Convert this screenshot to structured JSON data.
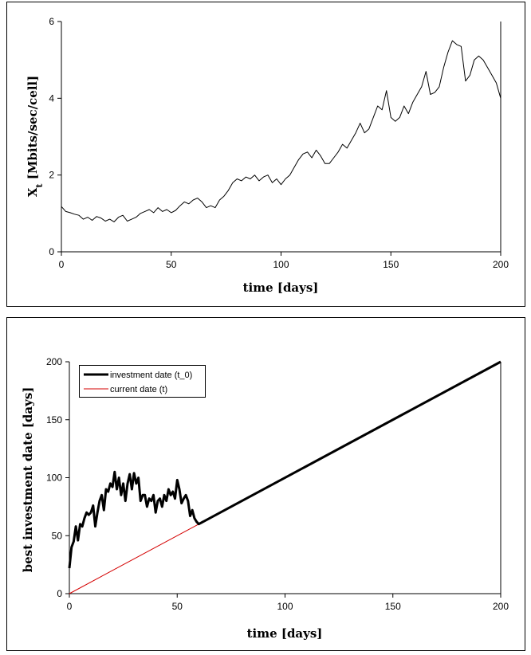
{
  "chart_data": [
    {
      "type": "line",
      "xlabel": "time [days]",
      "ylabel": "X",
      "ylabel_subscript": "t",
      "ylabel_suffix": " [Mbits/sec/cell]",
      "xlim": [
        0,
        200
      ],
      "ylim": [
        0,
        6
      ],
      "xticks": [
        0,
        50,
        100,
        150,
        200
      ],
      "yticks": [
        0,
        2,
        4,
        6
      ],
      "grid": false,
      "series": [
        {
          "color": "#000000",
          "x": [
            0,
            2,
            4,
            6,
            8,
            10,
            12,
            14,
            16,
            18,
            20,
            22,
            24,
            26,
            28,
            30,
            32,
            34,
            36,
            38,
            40,
            42,
            44,
            46,
            48,
            50,
            52,
            54,
            56,
            58,
            60,
            62,
            64,
            66,
            68,
            70,
            72,
            74,
            76,
            78,
            80,
            82,
            84,
            86,
            88,
            90,
            92,
            94,
            96,
            98,
            100,
            102,
            104,
            106,
            108,
            110,
            112,
            114,
            116,
            118,
            120,
            122,
            124,
            126,
            128,
            130,
            132,
            134,
            136,
            138,
            140,
            142,
            144,
            146,
            148,
            150,
            152,
            154,
            156,
            158,
            160,
            162,
            164,
            166,
            168,
            170,
            172,
            174,
            176,
            178,
            180,
            182,
            184,
            186,
            188,
            190,
            192,
            194,
            196,
            198,
            200
          ],
          "y": [
            1.18,
            1.05,
            1.02,
            0.98,
            0.95,
            0.85,
            0.9,
            0.82,
            0.92,
            0.88,
            0.8,
            0.85,
            0.78,
            0.9,
            0.95,
            0.8,
            0.85,
            0.9,
            1.0,
            1.05,
            1.1,
            1.02,
            1.15,
            1.05,
            1.1,
            1.02,
            1.08,
            1.2,
            1.3,
            1.25,
            1.35,
            1.4,
            1.3,
            1.15,
            1.2,
            1.15,
            1.35,
            1.45,
            1.6,
            1.8,
            1.9,
            1.85,
            1.95,
            1.9,
            2.0,
            1.85,
            1.95,
            2.0,
            1.8,
            1.9,
            1.75,
            1.9,
            2.0,
            2.2,
            2.4,
            2.55,
            2.6,
            2.45,
            2.65,
            2.5,
            2.3,
            2.3,
            2.45,
            2.6,
            2.8,
            2.7,
            2.9,
            3.1,
            3.35,
            3.1,
            3.2,
            3.5,
            3.8,
            3.7,
            4.2,
            3.5,
            3.4,
            3.5,
            3.8,
            3.6,
            3.9,
            4.1,
            4.3,
            4.7,
            4.1,
            4.15,
            4.3,
            4.8,
            5.2,
            5.5,
            5.4,
            5.35,
            4.45,
            4.6,
            5.0,
            5.1,
            5.0,
            4.8,
            4.6,
            4.4,
            4.0
          ]
        }
      ]
    },
    {
      "type": "line",
      "xlabel": "time [days]",
      "ylabel": "best investment date [days]",
      "xlim": [
        0,
        200
      ],
      "ylim": [
        0,
        200
      ],
      "xticks": [
        0,
        50,
        100,
        150,
        200
      ],
      "yticks": [
        0,
        50,
        100,
        150,
        200
      ],
      "grid": false,
      "legend": "top-left",
      "series": [
        {
          "name": "investment date (t_0)",
          "color": "#000000",
          "x": [
            0,
            1,
            2,
            3,
            4,
            5,
            6,
            7,
            8,
            9,
            10,
            11,
            12,
            13,
            14,
            15,
            16,
            17,
            18,
            19,
            20,
            21,
            22,
            23,
            24,
            25,
            26,
            27,
            28,
            29,
            30,
            31,
            32,
            33,
            34,
            35,
            36,
            37,
            38,
            39,
            40,
            41,
            42,
            43,
            44,
            45,
            46,
            47,
            48,
            49,
            50,
            51,
            52,
            53,
            54,
            55,
            56,
            57,
            58,
            59,
            60,
            200
          ],
          "y": [
            22,
            40,
            45,
            58,
            46,
            60,
            58,
            65,
            70,
            68,
            70,
            76,
            58,
            70,
            80,
            85,
            72,
            90,
            88,
            95,
            92,
            105,
            90,
            100,
            85,
            95,
            80,
            95,
            103,
            90,
            104,
            95,
            100,
            80,
            85,
            85,
            75,
            82,
            80,
            85,
            70,
            80,
            82,
            75,
            85,
            80,
            90,
            85,
            88,
            82,
            98,
            90,
            78,
            82,
            85,
            80,
            67,
            72,
            65,
            62,
            60,
            200
          ]
        },
        {
          "name": "current date (t)",
          "color": "#d40000",
          "x": [
            0,
            200
          ],
          "y": [
            0,
            200
          ]
        }
      ]
    }
  ]
}
